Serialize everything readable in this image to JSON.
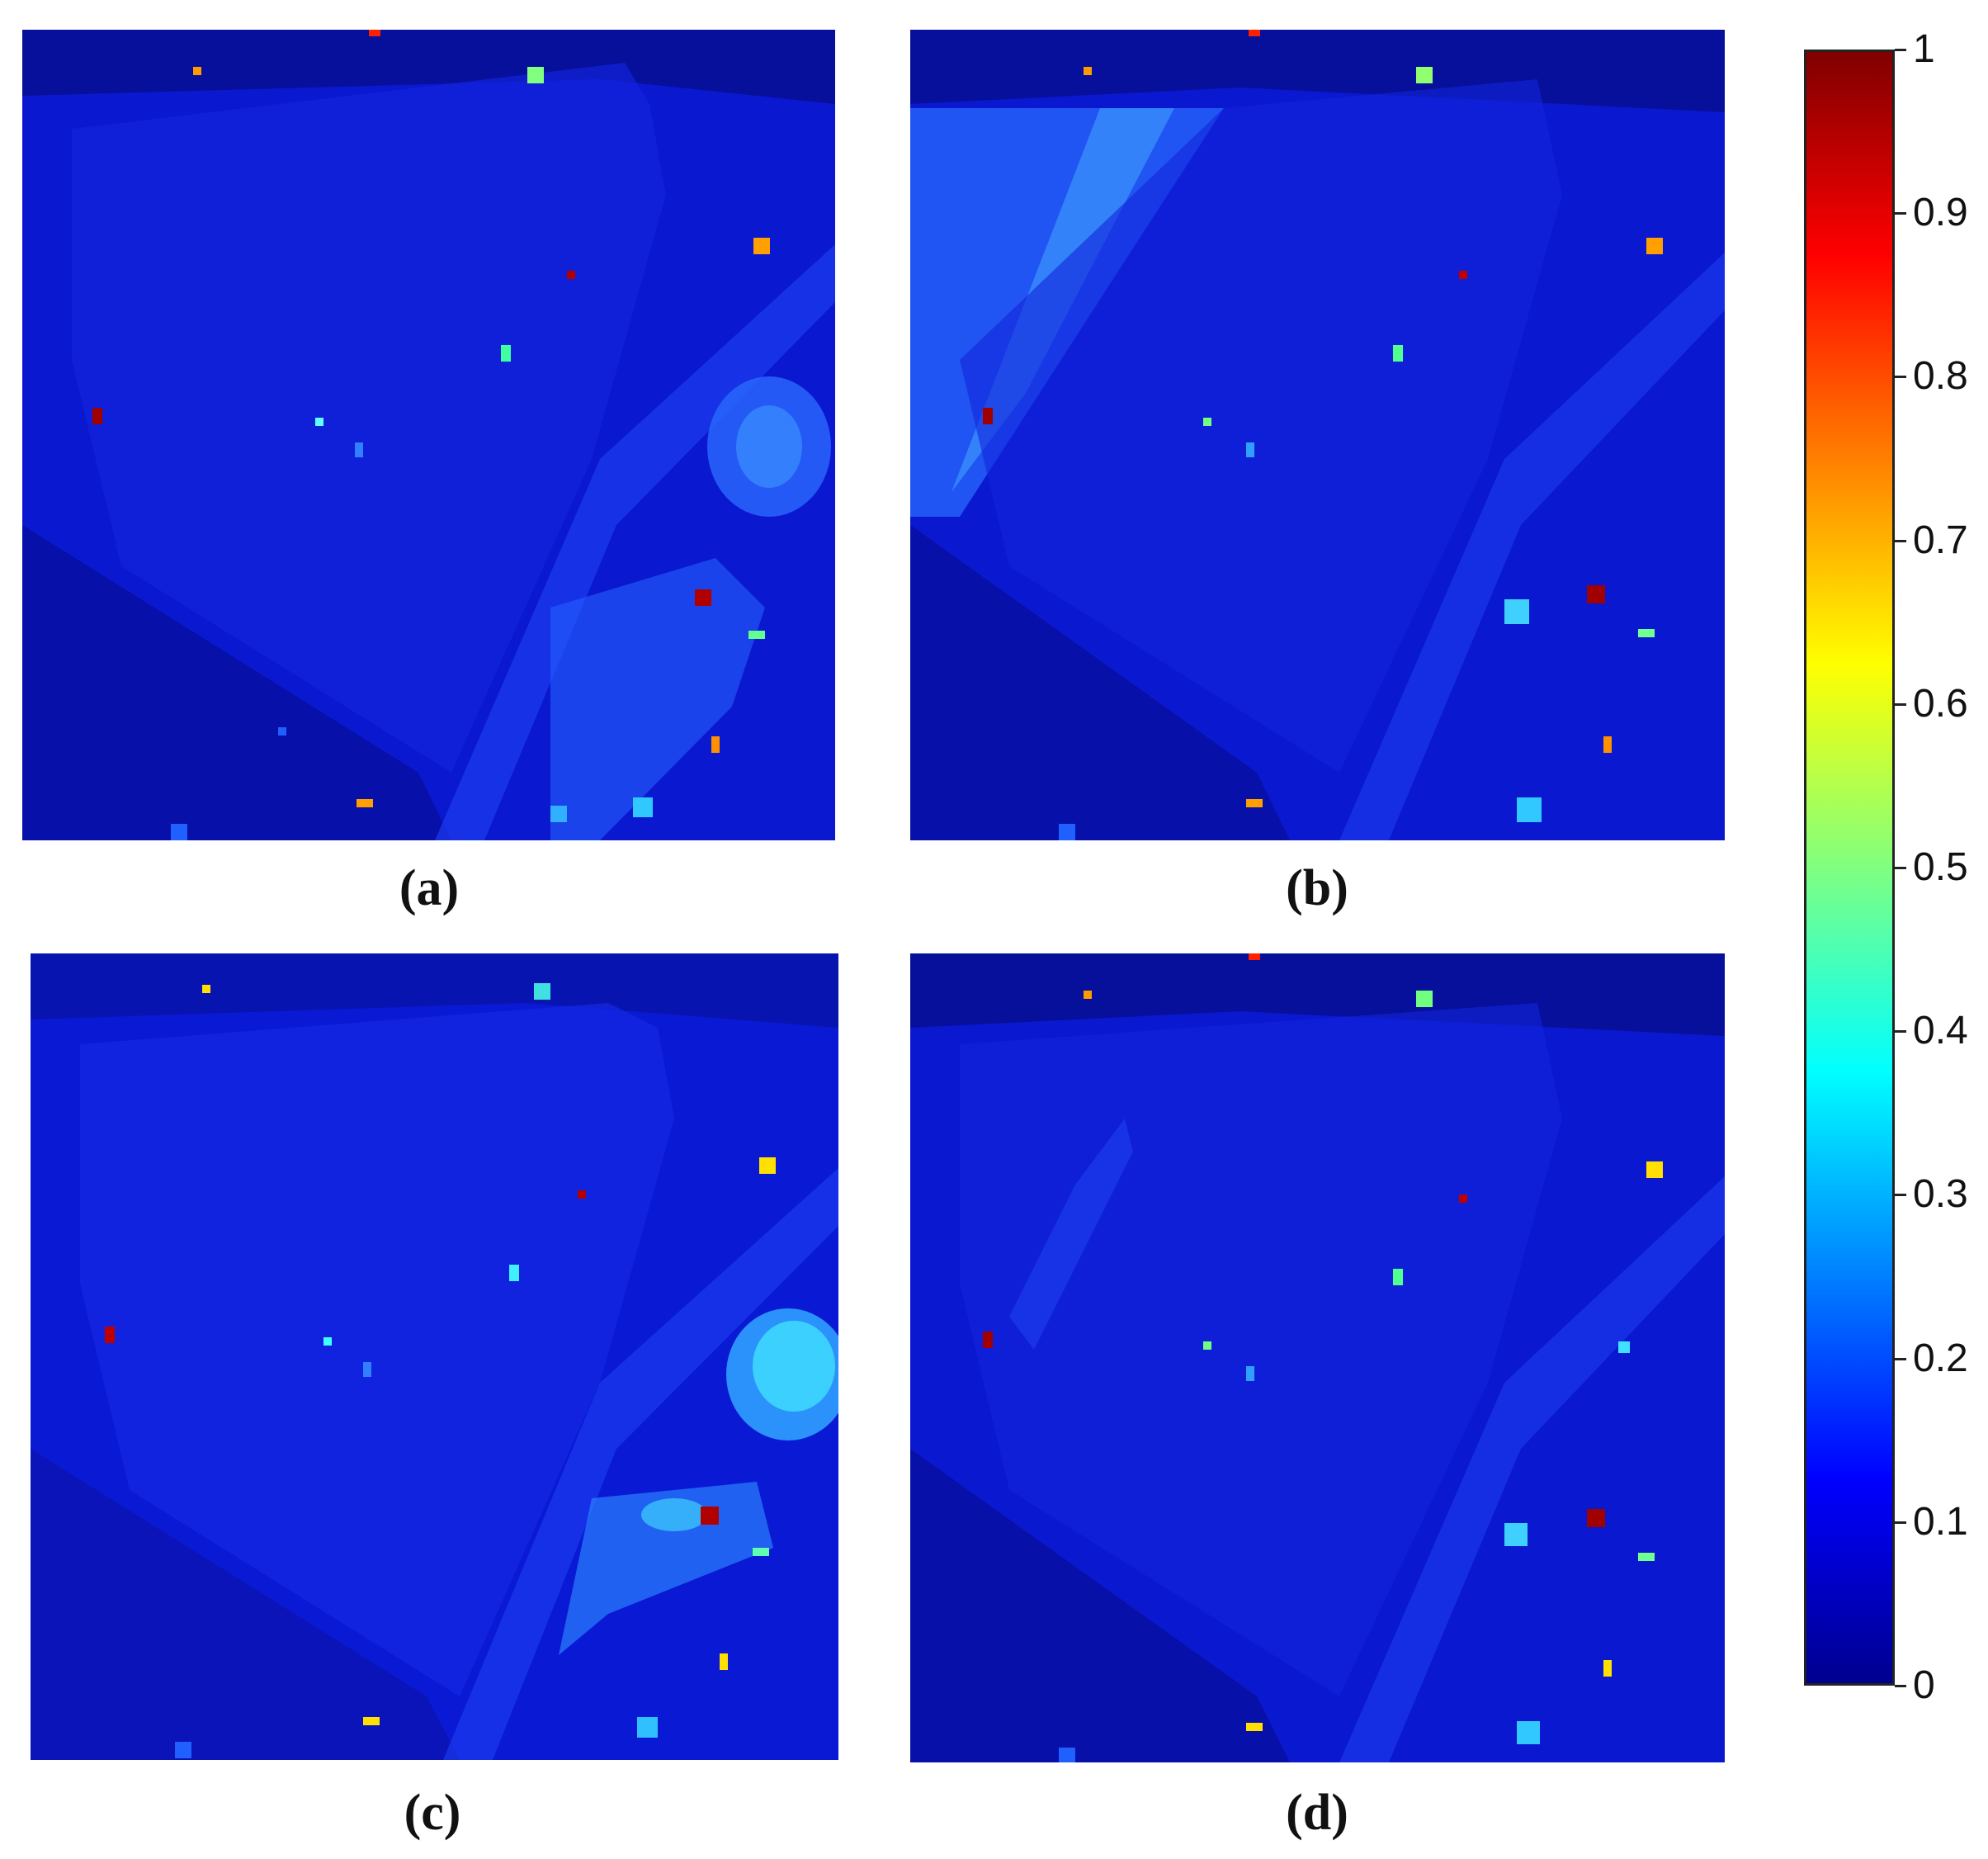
{
  "panels": [
    {
      "caption": "(a)"
    },
    {
      "caption": "(b)"
    },
    {
      "caption": "(c)"
    },
    {
      "caption": "(d)"
    }
  ],
  "colorbar": {
    "ticks": [
      "0",
      "0.1",
      "0.2",
      "0.3",
      "0.4",
      "0.5",
      "0.6",
      "0.7",
      "0.8",
      "0.9",
      "1"
    ],
    "min": 0,
    "max": 1,
    "colormap": "jet"
  }
}
